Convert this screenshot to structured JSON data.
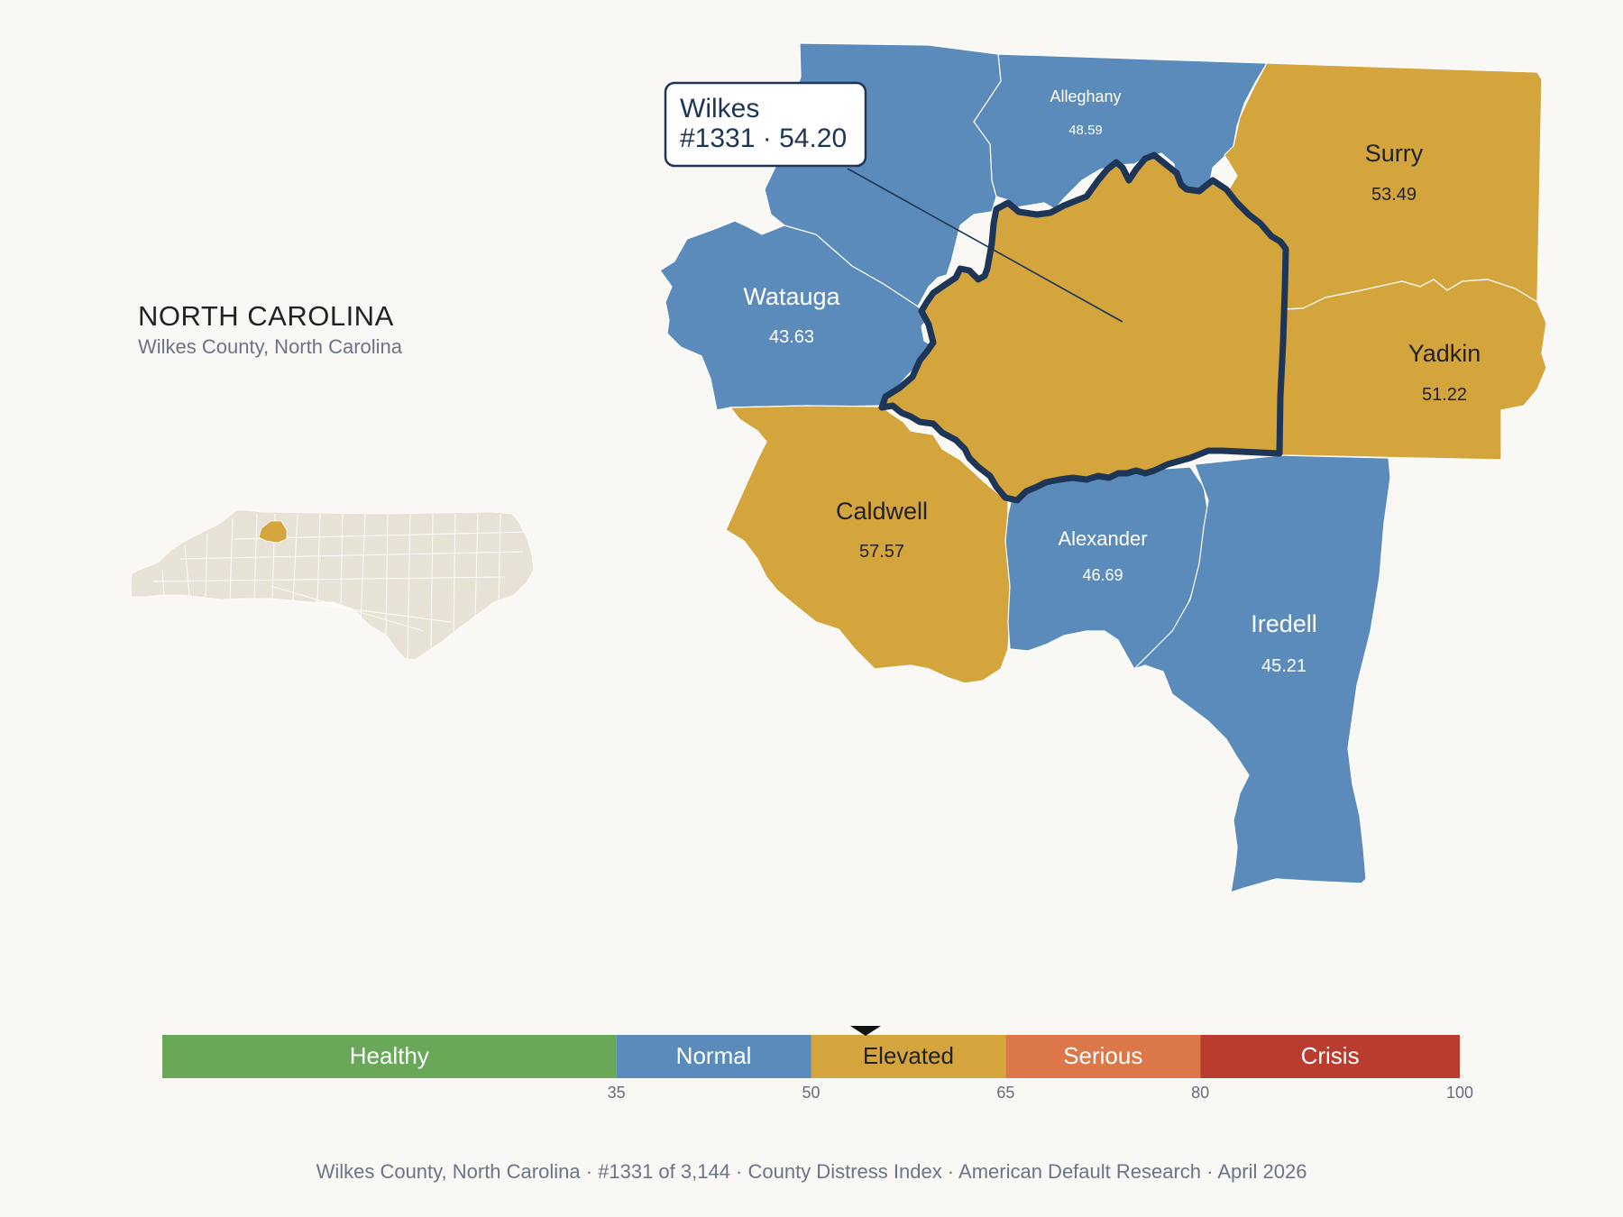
{
  "state": {
    "title": "NORTH CAROLINA",
    "subtitle": "Wilkes County, North Carolina"
  },
  "callout": {
    "name": "Wilkes",
    "rank_score": "#1331 · 54.20"
  },
  "colors": {
    "background": "#f9f8f4",
    "normal": "#5b8bbb",
    "elevated": "#d3a53c",
    "healthy": "#68a858",
    "serious": "#db7748",
    "crisis": "#b93c2e",
    "outline": "#1d3557",
    "inset_land": "#e8e2d6"
  },
  "counties": [
    {
      "id": "alleghany",
      "name": "Alleghany",
      "score": "48.59",
      "category": "normal"
    },
    {
      "id": "surry",
      "name": "Surry",
      "score": "53.49",
      "category": "elevated"
    },
    {
      "id": "watauga",
      "name": "Watauga",
      "score": "43.63",
      "category": "normal"
    },
    {
      "id": "yadkin",
      "name": "Yadkin",
      "score": "51.22",
      "category": "elevated"
    },
    {
      "id": "caldwell",
      "name": "Caldwell",
      "score": "57.57",
      "category": "elevated"
    },
    {
      "id": "alexander",
      "name": "Alexander",
      "score": "46.69",
      "category": "normal"
    },
    {
      "id": "iredell",
      "name": "Iredell",
      "score": "45.21",
      "category": "normal"
    },
    {
      "id": "wilkes",
      "name": "Wilkes",
      "score": "54.20",
      "category": "elevated"
    }
  ],
  "legend": {
    "bands": [
      {
        "label": "Healthy",
        "from": 0,
        "to": 35,
        "category": "healthy"
      },
      {
        "label": "Normal",
        "from": 35,
        "to": 50,
        "category": "normal"
      },
      {
        "label": "Elevated",
        "from": 50,
        "to": 65,
        "category": "elevated"
      },
      {
        "label": "Serious",
        "from": 65,
        "to": 80,
        "category": "serious"
      },
      {
        "label": "Crisis",
        "from": 80,
        "to": 100,
        "category": "crisis"
      }
    ],
    "ticks": [
      "35",
      "50",
      "65",
      "80",
      "100"
    ],
    "marker_value": 54.2
  },
  "footer": "Wilkes County, North Carolina  ·  #1331 of 3,144  ·  County Distress Index  ·  American Default Research  ·  April 2026"
}
